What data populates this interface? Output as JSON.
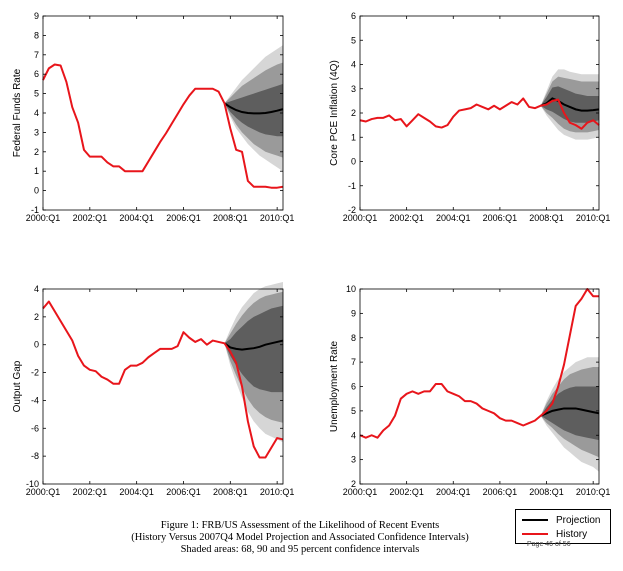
{
  "colors": {
    "projection": "#000000",
    "history": "#e8151b",
    "band95": "#d6d6d6",
    "band90": "#9a9a9a",
    "band68": "#5e5e5e"
  },
  "legend": {
    "projection_label": "Projection",
    "history_label": "History"
  },
  "caption": {
    "line1": "Figure 1: FRB/US Assessment of the Likelihood of Recent Events",
    "line2": "(History Versus 2007Q4 Model Projection and Associated Confidence Intervals)",
    "line3": "Shaded areas: 68, 90 and 95 percent confidence intervals"
  },
  "page_number": "Page 46 of 56",
  "chart_data": [
    {
      "type": "line",
      "ylabel": "Federal Funds Rate",
      "ylim": [
        -1,
        9
      ],
      "yticks": [
        -1,
        0,
        1,
        2,
        3,
        4,
        5,
        6,
        7,
        8,
        9
      ],
      "xlim": [
        2000,
        2010.25
      ],
      "xticks": [
        2000,
        2002,
        2004,
        2006,
        2008,
        2010
      ],
      "xtick_labels": [
        "2000:Q1",
        "2002:Q1",
        "2004:Q1",
        "2006:Q1",
        "2008:Q1",
        "2010:Q1"
      ],
      "history": {
        "x": [
          2000,
          2000.25,
          2000.5,
          2000.75,
          2001,
          2001.25,
          2001.5,
          2001.75,
          2002,
          2002.25,
          2002.5,
          2002.75,
          2003,
          2003.25,
          2003.5,
          2003.75,
          2004,
          2004.25,
          2004.5,
          2004.75,
          2005,
          2005.25,
          2005.5,
          2005.75,
          2006,
          2006.25,
          2006.5,
          2006.75,
          2007,
          2007.25,
          2007.5,
          2007.75,
          2008,
          2008.25,
          2008.5,
          2008.75,
          2009,
          2009.25,
          2009.5,
          2009.75,
          2010,
          2010.25
        ],
        "y": [
          5.7,
          6.3,
          6.5,
          6.45,
          5.6,
          4.3,
          3.5,
          2.1,
          1.75,
          1.75,
          1.75,
          1.45,
          1.25,
          1.25,
          1.0,
          1.0,
          1.0,
          1.0,
          1.5,
          2.0,
          2.5,
          2.95,
          3.45,
          3.95,
          4.45,
          4.9,
          5.25,
          5.25,
          5.25,
          5.25,
          5.1,
          4.5,
          3.2,
          2.1,
          2.0,
          0.5,
          0.2,
          0.2,
          0.2,
          0.15,
          0.15,
          0.2
        ]
      },
      "projection": {
        "x": [
          2007.75,
          2008,
          2008.25,
          2008.5,
          2008.75,
          2009,
          2009.25,
          2009.5,
          2009.75,
          2010,
          2010.25
        ],
        "y": [
          4.5,
          4.3,
          4.15,
          4.05,
          4.0,
          3.98,
          3.98,
          4.0,
          4.05,
          4.12,
          4.2
        ],
        "ci95_lower": [
          4.5,
          3.8,
          3.2,
          2.8,
          2.4,
          2.1,
          1.8,
          1.6,
          1.4,
          1.2,
          1.0
        ],
        "ci95_upper": [
          4.5,
          4.9,
          5.3,
          5.7,
          6.0,
          6.3,
          6.6,
          6.9,
          7.1,
          7.3,
          7.5
        ],
        "ci90_lower": [
          4.5,
          3.9,
          3.4,
          3.0,
          2.7,
          2.4,
          2.2,
          2.0,
          1.9,
          1.8,
          1.7
        ],
        "ci90_upper": [
          4.5,
          4.8,
          5.1,
          5.4,
          5.6,
          5.8,
          6.0,
          6.2,
          6.35,
          6.5,
          6.6
        ],
        "ci68_lower": [
          4.5,
          4.05,
          3.75,
          3.5,
          3.3,
          3.15,
          3.0,
          2.9,
          2.85,
          2.8,
          2.8
        ],
        "ci68_upper": [
          4.5,
          4.6,
          4.7,
          4.8,
          4.9,
          5.0,
          5.1,
          5.2,
          5.3,
          5.4,
          5.5
        ]
      }
    },
    {
      "type": "line",
      "ylabel": "Core PCE Inflation (4Q)",
      "ylim": [
        -2,
        6
      ],
      "yticks": [
        -2,
        -1,
        0,
        1,
        2,
        3,
        4,
        5,
        6
      ],
      "xlim": [
        2000,
        2010.25
      ],
      "xticks": [
        2000,
        2002,
        2004,
        2006,
        2008,
        2010
      ],
      "xtick_labels": [
        "2000:Q1",
        "2002:Q1",
        "2004:Q1",
        "2006:Q1",
        "2008:Q1",
        "2010:Q1"
      ],
      "history": {
        "x": [
          2000,
          2000.25,
          2000.5,
          2000.75,
          2001,
          2001.25,
          2001.5,
          2001.75,
          2002,
          2002.25,
          2002.5,
          2002.75,
          2003,
          2003.25,
          2003.5,
          2003.75,
          2004,
          2004.25,
          2004.5,
          2004.75,
          2005,
          2005.25,
          2005.5,
          2005.75,
          2006,
          2006.25,
          2006.5,
          2006.75,
          2007,
          2007.25,
          2007.5,
          2007.75,
          2008,
          2008.25,
          2008.5,
          2008.75,
          2009,
          2009.25,
          2009.5,
          2009.75,
          2010,
          2010.25
        ],
        "y": [
          1.7,
          1.65,
          1.75,
          1.8,
          1.8,
          1.9,
          1.7,
          1.75,
          1.45,
          1.7,
          1.95,
          1.8,
          1.65,
          1.45,
          1.4,
          1.5,
          1.85,
          2.1,
          2.15,
          2.2,
          2.35,
          2.25,
          2.15,
          2.3,
          2.15,
          2.3,
          2.45,
          2.35,
          2.6,
          2.25,
          2.2,
          2.3,
          2.35,
          2.5,
          2.55,
          2.0,
          1.6,
          1.5,
          1.35,
          1.6,
          1.7,
          1.5
        ]
      },
      "projection": {
        "x": [
          2007.75,
          2008,
          2008.25,
          2008.5,
          2008.75,
          2009,
          2009.25,
          2009.5,
          2009.75,
          2010,
          2010.25
        ],
        "y": [
          2.3,
          2.4,
          2.6,
          2.5,
          2.35,
          2.25,
          2.15,
          2.1,
          2.1,
          2.12,
          2.15
        ],
        "ci95_lower": [
          2.3,
          1.9,
          1.6,
          1.3,
          1.1,
          1.0,
          0.9,
          0.9,
          0.9,
          0.95,
          1.0
        ],
        "ci95_upper": [
          2.3,
          2.9,
          3.5,
          3.8,
          3.8,
          3.7,
          3.65,
          3.6,
          3.6,
          3.6,
          3.6
        ],
        "ci90_lower": [
          2.3,
          2.0,
          1.8,
          1.55,
          1.35,
          1.25,
          1.2,
          1.2,
          1.2,
          1.25,
          1.3
        ],
        "ci90_upper": [
          2.3,
          2.8,
          3.3,
          3.5,
          3.45,
          3.4,
          3.35,
          3.3,
          3.3,
          3.3,
          3.3
        ],
        "ci68_lower": [
          2.3,
          2.15,
          2.05,
          1.9,
          1.75,
          1.65,
          1.6,
          1.6,
          1.6,
          1.65,
          1.7
        ],
        "ci68_upper": [
          2.3,
          2.65,
          3.05,
          3.1,
          3.0,
          2.9,
          2.8,
          2.75,
          2.7,
          2.7,
          2.7
        ]
      }
    },
    {
      "type": "line",
      "ylabel": "Output Gap",
      "ylim": [
        -10,
        4
      ],
      "yticks": [
        -10,
        -8,
        -6,
        -4,
        -2,
        0,
        2,
        4
      ],
      "xlim": [
        2000,
        2010.25
      ],
      "xticks": [
        2000,
        2002,
        2004,
        2006,
        2008,
        2010
      ],
      "xtick_labels": [
        "2000:Q1",
        "2002:Q1",
        "2004:Q1",
        "2006:Q1",
        "2008:Q1",
        "2010:Q1"
      ],
      "history": {
        "x": [
          2000,
          2000.25,
          2000.5,
          2000.75,
          2001,
          2001.25,
          2001.5,
          2001.75,
          2002,
          2002.25,
          2002.5,
          2002.75,
          2003,
          2003.25,
          2003.5,
          2003.75,
          2004,
          2004.25,
          2004.5,
          2004.75,
          2005,
          2005.25,
          2005.5,
          2005.75,
          2006,
          2006.25,
          2006.5,
          2006.75,
          2007,
          2007.25,
          2007.5,
          2007.75,
          2008,
          2008.25,
          2008.5,
          2008.75,
          2009,
          2009.25,
          2009.5,
          2009.75,
          2010,
          2010.25
        ],
        "y": [
          2.6,
          3.1,
          2.4,
          1.7,
          1.0,
          0.3,
          -0.8,
          -1.5,
          -1.8,
          -1.9,
          -2.3,
          -2.5,
          -2.8,
          -2.8,
          -1.8,
          -1.5,
          -1.5,
          -1.3,
          -0.9,
          -0.6,
          -0.3,
          -0.3,
          -0.3,
          -0.1,
          0.9,
          0.5,
          0.2,
          0.4,
          0.0,
          0.3,
          0.2,
          0.1,
          -0.5,
          -1.3,
          -3.0,
          -5.5,
          -7.3,
          -8.1,
          -8.1,
          -7.4,
          -6.7,
          -6.8
        ]
      },
      "projection": {
        "x": [
          2007.75,
          2008,
          2008.25,
          2008.5,
          2008.75,
          2009,
          2009.25,
          2009.5,
          2009.75,
          2010,
          2010.25
        ],
        "y": [
          0.1,
          -0.2,
          -0.3,
          -0.35,
          -0.3,
          -0.25,
          -0.15,
          0.0,
          0.1,
          0.2,
          0.3
        ],
        "ci95_lower": [
          0.1,
          -1.5,
          -2.7,
          -3.8,
          -4.8,
          -5.5,
          -6.0,
          -6.4,
          -6.6,
          -6.8,
          -7.0
        ],
        "ci95_upper": [
          0.1,
          1.1,
          2.0,
          2.7,
          3.2,
          3.7,
          4.0,
          4.2,
          4.3,
          4.4,
          4.5
        ],
        "ci90_lower": [
          0.1,
          -1.2,
          -2.2,
          -3.1,
          -3.9,
          -4.5,
          -4.9,
          -5.2,
          -5.4,
          -5.5,
          -5.6
        ],
        "ci90_upper": [
          0.1,
          0.8,
          1.5,
          2.1,
          2.6,
          3.0,
          3.3,
          3.5,
          3.6,
          3.7,
          3.8
        ],
        "ci68_lower": [
          0.1,
          -0.8,
          -1.5,
          -2.1,
          -2.6,
          -3.0,
          -3.2,
          -3.3,
          -3.4,
          -3.4,
          -3.4
        ],
        "ci68_upper": [
          0.1,
          0.4,
          0.9,
          1.3,
          1.7,
          2.0,
          2.2,
          2.4,
          2.6,
          2.7,
          2.8
        ]
      }
    },
    {
      "type": "line",
      "ylabel": "Unemployment Rate",
      "ylim": [
        2,
        10
      ],
      "yticks": [
        2,
        3,
        4,
        5,
        6,
        7,
        8,
        9,
        10
      ],
      "xlim": [
        2000,
        2010.25
      ],
      "xticks": [
        2000,
        2002,
        2004,
        2006,
        2008,
        2010
      ],
      "xtick_labels": [
        "2000:Q1",
        "2002:Q1",
        "2004:Q1",
        "2006:Q1",
        "2008:Q1",
        "2010:Q1"
      ],
      "history": {
        "x": [
          2000,
          2000.25,
          2000.5,
          2000.75,
          2001,
          2001.25,
          2001.5,
          2001.75,
          2002,
          2002.25,
          2002.5,
          2002.75,
          2003,
          2003.25,
          2003.5,
          2003.75,
          2004,
          2004.25,
          2004.5,
          2004.75,
          2005,
          2005.25,
          2005.5,
          2005.75,
          2006,
          2006.25,
          2006.5,
          2006.75,
          2007,
          2007.25,
          2007.5,
          2007.75,
          2008,
          2008.25,
          2008.5,
          2008.75,
          2009,
          2009.25,
          2009.5,
          2009.75,
          2010,
          2010.25
        ],
        "y": [
          4.0,
          3.9,
          4.0,
          3.9,
          4.2,
          4.4,
          4.8,
          5.5,
          5.7,
          5.8,
          5.7,
          5.8,
          5.8,
          6.1,
          6.1,
          5.8,
          5.7,
          5.6,
          5.4,
          5.4,
          5.3,
          5.1,
          5.0,
          4.9,
          4.7,
          4.6,
          4.6,
          4.5,
          4.4,
          4.5,
          4.6,
          4.8,
          5.0,
          5.3,
          6.0,
          6.9,
          8.1,
          9.3,
          9.6,
          10.0,
          9.7,
          9.7
        ]
      },
      "projection": {
        "x": [
          2007.75,
          2008,
          2008.25,
          2008.5,
          2008.75,
          2009,
          2009.25,
          2009.5,
          2009.75,
          2010,
          2010.25
        ],
        "y": [
          4.8,
          4.9,
          5.0,
          5.05,
          5.1,
          5.1,
          5.1,
          5.05,
          5.0,
          4.95,
          4.9
        ],
        "ci95_lower": [
          4.8,
          4.4,
          4.1,
          3.8,
          3.5,
          3.3,
          3.1,
          2.9,
          2.8,
          2.7,
          2.5
        ],
        "ci95_upper": [
          4.8,
          5.4,
          5.9,
          6.3,
          6.6,
          6.8,
          7.0,
          7.1,
          7.2,
          7.2,
          7.2
        ],
        "ci90_lower": [
          4.8,
          4.5,
          4.3,
          4.05,
          3.85,
          3.7,
          3.55,
          3.4,
          3.3,
          3.2,
          3.1
        ],
        "ci90_upper": [
          4.8,
          5.3,
          5.7,
          6.0,
          6.3,
          6.5,
          6.6,
          6.7,
          6.75,
          6.8,
          6.8
        ],
        "ci68_lower": [
          4.8,
          4.65,
          4.5,
          4.35,
          4.2,
          4.1,
          4.0,
          3.95,
          3.9,
          3.85,
          3.8
        ],
        "ci68_upper": [
          4.8,
          5.15,
          5.45,
          5.7,
          5.85,
          5.95,
          6.0,
          6.0,
          6.0,
          6.0,
          6.0
        ]
      }
    }
  ]
}
